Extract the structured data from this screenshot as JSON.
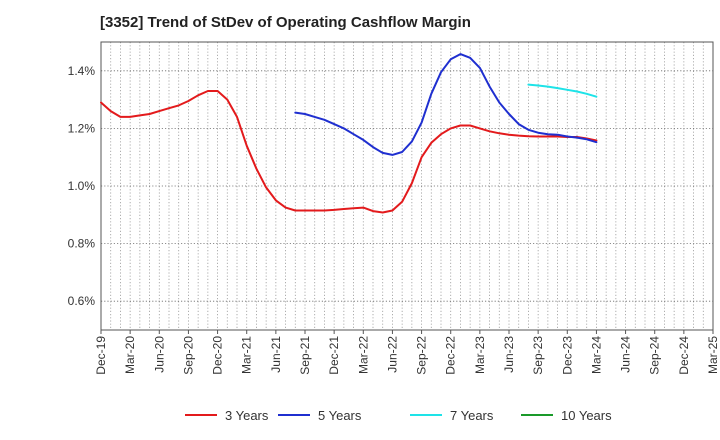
{
  "chart_data": {
    "type": "line",
    "title": "[3352]  Trend of StDev of Operating Cashflow Margin",
    "xlabel": "",
    "ylabel": "",
    "x_tick_labels": [
      "Dec-19",
      "Mar-20",
      "Jun-20",
      "Sep-20",
      "Dec-20",
      "Mar-21",
      "Jun-21",
      "Sep-21",
      "Dec-21",
      "Mar-22",
      "Jun-22",
      "Sep-22",
      "Dec-22",
      "Mar-23",
      "Jun-23",
      "Sep-23",
      "Dec-23",
      "Mar-24",
      "Jun-24",
      "Sep-24",
      "Dec-24",
      "Mar-25"
    ],
    "y_tick_labels": [
      "0.6%",
      "0.8%",
      "1.0%",
      "1.2%",
      "1.4%"
    ],
    "y_ticks": [
      0.6,
      0.8,
      1.0,
      1.2,
      1.4
    ],
    "ylim": [
      0.5,
      1.5
    ],
    "x_range_months": [
      0,
      63
    ],
    "grid": true,
    "legend_position": "bottom",
    "series": [
      {
        "name": "3 Years",
        "color": "#e31a1c",
        "x": [
          0,
          1,
          2,
          3,
          4,
          5,
          6,
          7,
          8,
          9,
          10,
          11,
          12,
          13,
          14,
          15,
          16,
          17,
          18,
          19,
          20,
          21,
          22,
          23,
          24,
          25,
          26,
          27,
          28,
          29,
          30,
          31,
          32,
          33,
          34,
          35,
          36,
          37,
          38,
          39,
          40,
          41,
          42,
          43,
          44,
          45,
          46,
          47,
          48,
          49,
          50,
          51
        ],
        "values": [
          1.29,
          1.26,
          1.24,
          1.24,
          1.245,
          1.25,
          1.26,
          1.27,
          1.28,
          1.295,
          1.315,
          1.33,
          1.33,
          1.3,
          1.24,
          1.14,
          1.06,
          0.995,
          0.95,
          0.925,
          0.915,
          0.915,
          0.915,
          0.915,
          0.917,
          0.92,
          0.923,
          0.925,
          0.913,
          0.908,
          0.915,
          0.945,
          1.01,
          1.1,
          1.15,
          1.18,
          1.2,
          1.21,
          1.21,
          1.2,
          1.19,
          1.183,
          1.178,
          1.175,
          1.173,
          1.172,
          1.172,
          1.172,
          1.17,
          1.17,
          1.165,
          1.158
        ]
      },
      {
        "name": "5 Years",
        "color": "#1f2fd0",
        "x": [
          20,
          21,
          22,
          23,
          24,
          25,
          26,
          27,
          28,
          29,
          30,
          31,
          32,
          33,
          34,
          35,
          36,
          37,
          38,
          39,
          40,
          41,
          42,
          43,
          44,
          45,
          46,
          47,
          48,
          49,
          50,
          51
        ],
        "values": [
          1.255,
          1.25,
          1.24,
          1.23,
          1.215,
          1.2,
          1.18,
          1.16,
          1.135,
          1.115,
          1.108,
          1.118,
          1.155,
          1.22,
          1.32,
          1.395,
          1.44,
          1.458,
          1.445,
          1.41,
          1.345,
          1.29,
          1.25,
          1.215,
          1.195,
          1.185,
          1.18,
          1.178,
          1.172,
          1.168,
          1.162,
          1.152
        ]
      },
      {
        "name": "7 Years",
        "color": "#1ee3e8",
        "x": [
          44,
          45,
          46,
          47,
          48,
          49,
          50,
          51
        ],
        "values": [
          1.352,
          1.349,
          1.345,
          1.34,
          1.334,
          1.328,
          1.32,
          1.31
        ]
      },
      {
        "name": "10 Years",
        "color": "#1a9a2a",
        "x": [],
        "values": []
      }
    ]
  }
}
